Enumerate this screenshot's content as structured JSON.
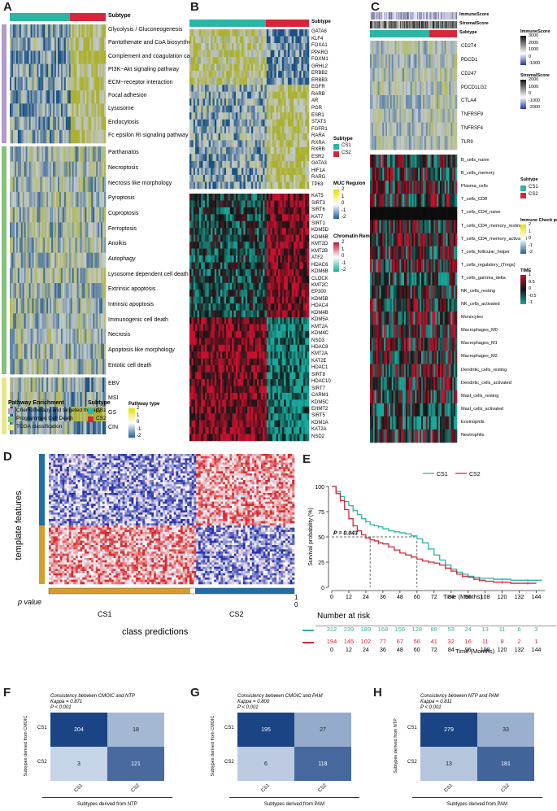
{
  "panels": {
    "A": {
      "letter": "A",
      "subtype_header": "Subtype",
      "rows_group1": [
        "Glycolysis / Gluconeogenesis",
        "Pantothenate and CoA biosynthesis",
        "Complement and coagulation cascades",
        "PI3K−Akt signaling pathway",
        "ECM−receptor interaction",
        "Focal adhesion",
        "Lysosome",
        "Endocytosis",
        "Fc epsilon RI signaling pathway"
      ],
      "rows_group2": [
        "Parthanatos",
        "Necroptosis",
        "Necrosis like morphology",
        "Pyroptosis",
        "Cuproptosis",
        "Ferroptosis",
        "Anoikis",
        "Autophagy",
        "Lysosome dependent cell death",
        "Extrinsic apoptosis",
        "Intrinsic apoptosis",
        "Immunogenic cell death",
        "Necrosis",
        "Apoptosis like morphology",
        "Entotic cell death"
      ],
      "rows_group3": [
        "EBV",
        "MSI",
        "GS",
        "CIN"
      ],
      "legend_pathway_title": "Pathway Enrichment",
      "legend_pathway_items": [
        "Chemotherapy and targeted therapy",
        "Programmed Cell Death",
        "TCGA classification"
      ],
      "legend_subtype_title": "Subtype",
      "legend_subtype_items": [
        "CS1",
        "CS2"
      ],
      "legend_type_title": "Pathway type",
      "legend_type_ticks": [
        "2",
        "1",
        "0",
        "-1",
        "-2"
      ],
      "colors": {
        "group1": "#b29cc9",
        "group2": "#86c27a",
        "group3": "#e8e88a",
        "cs1": "#2bb5a5",
        "cs2": "#d6273a"
      }
    },
    "B": {
      "letter": "B",
      "subtype_header": "Subtype",
      "genes_top": [
        "GATA6",
        "KLF4",
        "FOXA1",
        "PPARG",
        "FOXM1",
        "GRHL2",
        "ERBB2",
        "ERBB3",
        "EGFR",
        "RARB",
        "AR",
        "PGR",
        "ESR1",
        "STAT3",
        "FGFR1",
        "RARA",
        "RXRA",
        "RXRB",
        "ESR2",
        "GATA3",
        "HIF1A",
        "RARG",
        "TP63"
      ],
      "genes_bottom": [
        "KAT5",
        "SIRT3",
        "SIRT6",
        "KAT7",
        "SIRT1",
        "KDM5D",
        "KDM6B",
        "KMT2D",
        "KMT2B",
        "ATF2",
        "HDAC6",
        "KDM6B",
        "CLOCK",
        "KMT2C",
        "EP300",
        "KDM5B",
        "HDAC4",
        "KDM4B",
        "KDM5A",
        "KMT2A",
        "KDM4C",
        "NSD3",
        "HDAC8",
        "KMT2A",
        "KAT2E",
        "HDAC1",
        "SIRT8",
        "HDAC10",
        "SIRT7",
        "CARM1",
        "KDM5C",
        "EHMT2",
        "SIRT5",
        "KDM1A",
        "KAT2A",
        "NSD2"
      ],
      "legend_subtype_title": "Subtype",
      "legend_subtype_items": [
        "CS1",
        "CS2"
      ],
      "legend_muc_title": "MUC Regulon",
      "legend_muc_ticks": [
        "2",
        "1",
        "0",
        "-1",
        "-2"
      ],
      "legend_chrom_title": "Chromatin Remodeling",
      "legend_chrom_ticks": [
        "2",
        "1",
        "0",
        "-1",
        "-2"
      ]
    },
    "C": {
      "letter": "C",
      "top_labels": [
        "ImmuneScore",
        "StromalScore",
        "Subtype"
      ],
      "checkpoints": [
        "CD274",
        "PDCD1",
        "CD247",
        "PDCD1LG2",
        "CTLA4",
        "TNFRSF9",
        "TNFRSF4",
        "TLR9"
      ],
      "cells": [
        "B_cells_naive",
        "B_cells_memory",
        "Plasma_cells",
        "T_cells_CD8",
        "T_cells_CD4_naive",
        "T_cells_CD4_memory_resting",
        "T_cells_CD4_memory_activated",
        "T_cells_follicular_helper",
        "T_cells_regulatory_(Tregs)",
        "T_cells_gamma_delta",
        "NK_cells_resting",
        "NK_cells_activated",
        "Monocytes",
        "Macrophages_M0",
        "Macrophages_M1",
        "Macrophages_M2",
        "Dendritic_cells_resting",
        "Dendritic_cells_activated",
        "Mast_cells_resting",
        "Mast_cells_activated",
        "Eosinophils",
        "Neutrophils"
      ],
      "legend_immune_title": "ImmuneScore",
      "legend_immune_ticks": [
        "3000",
        "2000",
        "1000",
        "0",
        "-1000"
      ],
      "legend_stromal_title": "StromalScore",
      "legend_stromal_ticks": [
        "2000",
        "1000",
        "0",
        "-1000",
        "-2000"
      ],
      "legend_subtype_title": "Subtype",
      "legend_subtype_items": [
        "CS1",
        "CS2"
      ],
      "legend_icp_title": "Immune Check point",
      "legend_icp_ticks": [
        "2",
        "1",
        "0",
        "-1",
        "-2"
      ],
      "legend_time_title": "TIME",
      "legend_time_ticks": [
        "1",
        "0.5",
        "0",
        "-0.5",
        "-1"
      ]
    },
    "D": {
      "letter": "D",
      "ylabel": "template features",
      "pvalue_label": "p  value",
      "pvalue_ticks": [
        "1",
        "0"
      ],
      "class_labels": [
        "CS1",
        "CS2"
      ],
      "xlabel": "class predictions"
    },
    "E": {
      "letter": "E",
      "pvalue_text": "P = 0.043",
      "number_at_risk_title": "Number at risk",
      "risk_cs1": [
        "312",
        "239",
        "189",
        "168",
        "156",
        "128",
        "88",
        "53",
        "24",
        "13",
        "11",
        "6",
        "3"
      ],
      "risk_cs2": [
        "194",
        "145",
        "102",
        "77",
        "67",
        "56",
        "41",
        "32",
        "16",
        "11",
        "8",
        "2",
        "1"
      ],
      "risk_x": [
        "0",
        "12",
        "24",
        "36",
        "48",
        "60",
        "72",
        "84",
        "96",
        "108",
        "120",
        "132",
        "144"
      ]
    },
    "F": {
      "letter": "F",
      "title": "Consistency between CMOIC and NTP",
      "kappa": "Kappa = 0.871",
      "pval": "P < 0.001",
      "ylabel": "Subtypes derived from CMOIC",
      "xlabel": "Subtypes derived from NTP",
      "row_labels": [
        "CS1",
        "CS2"
      ],
      "col_labels": [
        "CS1",
        "CS2"
      ],
      "cells": [
        [
          "204",
          "18"
        ],
        [
          "3",
          "121"
        ]
      ]
    },
    "G": {
      "letter": "G",
      "title": "Consistency between CMOIC and PAM",
      "kappa": "Kappa = 0.800",
      "pval": "P < 0.001",
      "ylabel": "Subtypes derived from CMOIC",
      "xlabel": "Subtypes derived from PAM",
      "row_labels": [
        "CS1",
        "CS2"
      ],
      "col_labels": [
        "CS1",
        "CS2"
      ],
      "cells": [
        [
          "195",
          "27"
        ],
        [
          "6",
          "118"
        ]
      ]
    },
    "H": {
      "letter": "H",
      "title": "Consistency between NTP and PAM",
      "kappa": "Kappa = 0.811",
      "pval": "P < 0.001",
      "ylabel": "Subtypes derived from NTP",
      "xlabel": "Subtypes derived from PAM",
      "row_labels": [
        "CS1",
        "CS2"
      ],
      "col_labels": [
        "CS1",
        "CS2"
      ],
      "cells": [
        [
          "279",
          "33"
        ],
        [
          "13",
          "181"
        ]
      ]
    }
  },
  "chart_data": {
    "type": "line",
    "xlabel": "Time (Months)",
    "ylabel": "Survival probability (%)",
    "xlim": [
      0,
      150
    ],
    "ylim": [
      0,
      100
    ],
    "xticks": [
      0,
      12,
      24,
      36,
      48,
      60,
      72,
      84,
      96,
      108,
      120,
      132,
      144
    ],
    "yticks": [
      0,
      25,
      50,
      75,
      100
    ],
    "legend": "top",
    "series": [
      {
        "name": "CS1",
        "color": "#2bb5a5",
        "x": [
          0,
          3,
          6,
          9,
          12,
          15,
          18,
          21,
          24,
          27,
          30,
          33,
          36,
          40,
          44,
          48,
          52,
          56,
          60,
          64,
          68,
          72,
          76,
          80,
          84,
          88,
          92,
          96,
          100,
          104,
          108,
          114,
          120,
          126,
          132,
          138,
          144,
          148
        ],
        "y": [
          100,
          95,
          90,
          85,
          81,
          76,
          72,
          68,
          65,
          62,
          61,
          60,
          58,
          56,
          55,
          54,
          53,
          51,
          48,
          44,
          38,
          32,
          27,
          22,
          18,
          15,
          13,
          11,
          10,
          9,
          9,
          8,
          8,
          7,
          7,
          7,
          7,
          7
        ]
      },
      {
        "name": "CS2",
        "color": "#d6273a",
        "x": [
          0,
          3,
          6,
          9,
          12,
          15,
          18,
          21,
          24,
          27,
          30,
          33,
          36,
          40,
          44,
          48,
          52,
          56,
          60,
          64,
          68,
          72,
          76,
          80,
          84,
          88,
          92,
          96,
          100,
          104,
          108,
          114,
          120,
          126,
          132,
          138,
          144
        ],
        "y": [
          100,
          93,
          86,
          77,
          68,
          61,
          56,
          52,
          49,
          47,
          46,
          44,
          43,
          40,
          37,
          34,
          32,
          30,
          28,
          26,
          25,
          24,
          22,
          19,
          16,
          13,
          11,
          10,
          8,
          7,
          6,
          5,
          5,
          4,
          4,
          4,
          4
        ]
      }
    ],
    "annotations": [
      "P = 0.043"
    ]
  }
}
